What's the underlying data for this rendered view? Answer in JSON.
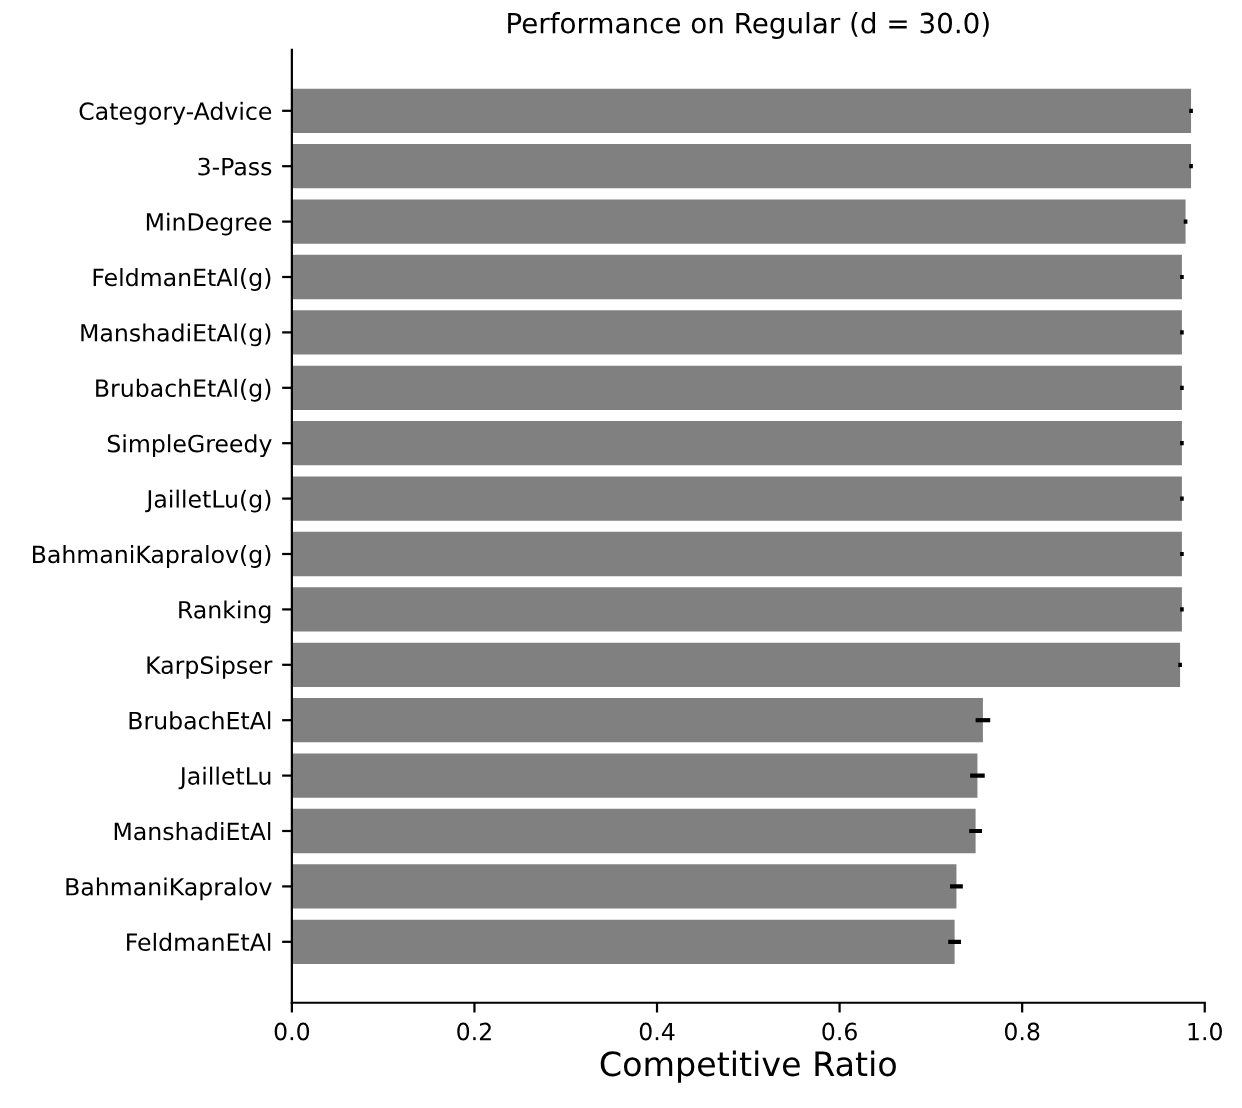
{
  "chart_data": {
    "type": "bar",
    "orientation": "horizontal",
    "title": "Performance on Regular (d = 30.0)",
    "xlabel": "Competitive Ratio",
    "categories": [
      "Category-Advice",
      "3-Pass",
      "MinDegree",
      "FeldmanEtAl(g)",
      "ManshadiEtAl(g)",
      "BrubachEtAl(g)",
      "SimpleGreedy",
      "JailletLu(g)",
      "BahmaniKapralov(g)",
      "Ranking",
      "KarpSipser",
      "BrubachEtAl",
      "JailletLu",
      "ManshadiEtAl",
      "BahmaniKapralov",
      "FeldmanEtAl"
    ],
    "values": [
      0.985,
      0.985,
      0.979,
      0.975,
      0.975,
      0.975,
      0.975,
      0.975,
      0.975,
      0.975,
      0.973,
      0.757,
      0.751,
      0.749,
      0.728,
      0.726
    ],
    "errors": [
      0.002,
      0.002,
      0.002,
      0.002,
      0.002,
      0.002,
      0.002,
      0.002,
      0.002,
      0.002,
      0.002,
      0.008,
      0.008,
      0.007,
      0.007,
      0.007
    ],
    "color": "#808080",
    "xlim": [
      0,
      1.0
    ],
    "xticks": [
      {
        "value": 0,
        "label": "0.0"
      },
      0.2,
      0.4,
      0.6,
      0.8,
      {
        "value": 1,
        "label": "1.0"
      }
    ],
    "grid": false,
    "legend": false
  }
}
